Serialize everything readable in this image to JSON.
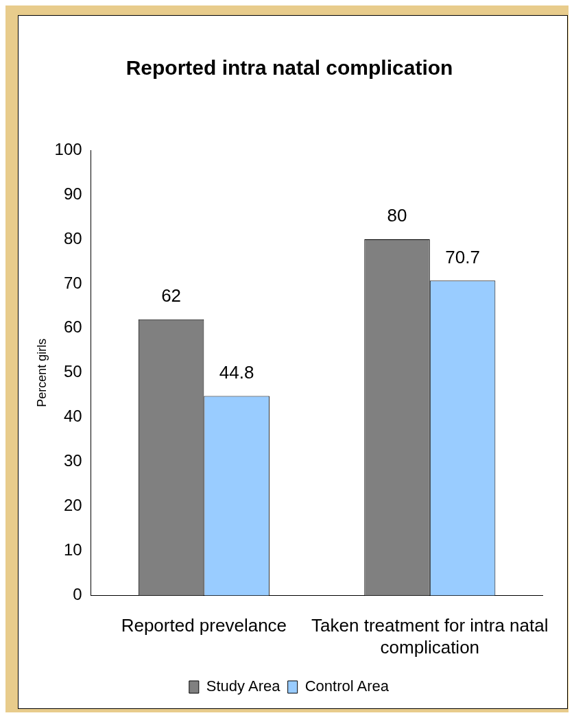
{
  "chart_data": {
    "type": "bar",
    "title": "Reported intra natal complication",
    "ylabel": "Percent girls",
    "categories": [
      "Reported prevelance",
      "Taken treatment for intra natal complication"
    ],
    "series": [
      {
        "name": "Study Area",
        "color": "#808080",
        "values": [
          62,
          80
        ]
      },
      {
        "name": "Control Area",
        "color": "#99ccff",
        "values": [
          44.8,
          70.7
        ]
      }
    ],
    "ylim": [
      0,
      100
    ],
    "yticks": [
      0,
      10,
      20,
      30,
      40,
      50,
      60,
      70,
      80,
      90,
      100
    ],
    "grid": false,
    "legend": "bottom",
    "data_labels": true
  }
}
